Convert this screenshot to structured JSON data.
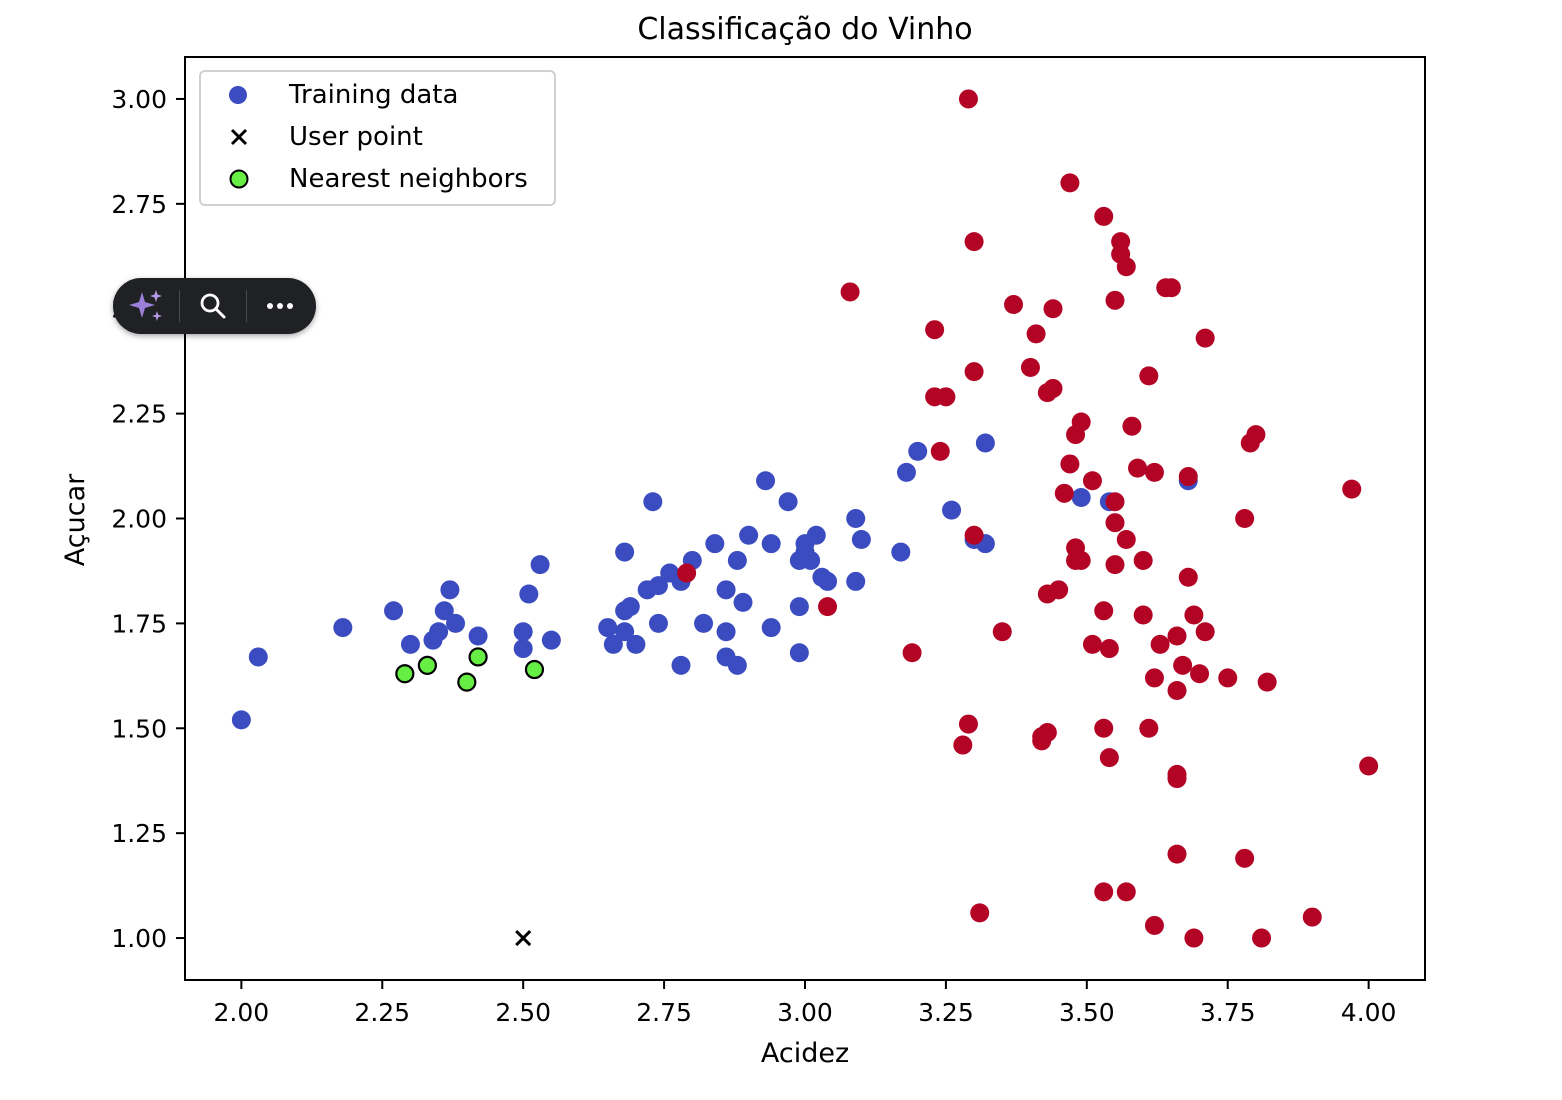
{
  "colors": {
    "training": "#3B4CC0",
    "other": "#B40426",
    "neighbor_fill": "#66EE44",
    "user_point": "#000000"
  },
  "chart_data": {
    "type": "scatter",
    "title": "Classificação do Vinho",
    "xlabel": "Acidez",
    "ylabel": "Açucar",
    "xlim": [
      1.9,
      4.1
    ],
    "ylim": [
      0.9,
      3.1
    ],
    "xticks": [
      "2.00",
      "2.25",
      "2.50",
      "2.75",
      "3.00",
      "3.25",
      "3.50",
      "3.75",
      "4.00"
    ],
    "yticks": [
      "1.00",
      "1.25",
      "1.50",
      "1.75",
      "2.00",
      "2.25",
      "2.50",
      "2.75",
      "3.00"
    ],
    "grid": false,
    "legend_position": "top-left",
    "legend": [
      {
        "label": "Training data",
        "marker": "circle-blue"
      },
      {
        "label": "User point",
        "marker": "x-black"
      },
      {
        "label": "Nearest neighbors",
        "marker": "circle-green"
      }
    ],
    "series": [
      {
        "name": "Training data",
        "class_a": [
          [
            2.0,
            1.52
          ],
          [
            2.03,
            1.67
          ],
          [
            2.18,
            1.74
          ],
          [
            2.27,
            1.78
          ],
          [
            2.3,
            1.7
          ],
          [
            2.34,
            1.71
          ],
          [
            2.35,
            1.73
          ],
          [
            2.36,
            1.78
          ],
          [
            2.37,
            1.83
          ],
          [
            2.38,
            1.75
          ],
          [
            2.42,
            1.72
          ],
          [
            2.5,
            1.69
          ],
          [
            2.5,
            1.73
          ],
          [
            2.51,
            1.82
          ],
          [
            2.53,
            1.89
          ],
          [
            2.55,
            1.71
          ],
          [
            2.65,
            1.74
          ],
          [
            2.66,
            1.7
          ],
          [
            2.68,
            1.73
          ],
          [
            2.68,
            1.78
          ],
          [
            2.68,
            1.92
          ],
          [
            2.69,
            1.79
          ],
          [
            2.7,
            1.7
          ],
          [
            2.72,
            1.83
          ],
          [
            2.73,
            2.04
          ],
          [
            2.74,
            1.84
          ],
          [
            2.74,
            1.75
          ],
          [
            2.76,
            1.87
          ],
          [
            2.78,
            1.85
          ],
          [
            2.78,
            1.65
          ],
          [
            2.8,
            1.9
          ],
          [
            2.82,
            1.75
          ],
          [
            2.84,
            1.94
          ],
          [
            2.86,
            1.83
          ],
          [
            2.86,
            1.73
          ],
          [
            2.86,
            1.67
          ],
          [
            2.88,
            1.65
          ],
          [
            2.88,
            1.9
          ],
          [
            2.89,
            1.8
          ],
          [
            2.9,
            1.96
          ],
          [
            2.93,
            2.09
          ],
          [
            2.94,
            1.94
          ],
          [
            2.94,
            1.74
          ],
          [
            2.97,
            2.04
          ],
          [
            2.99,
            1.9
          ],
          [
            2.99,
            1.79
          ],
          [
            2.99,
            1.68
          ],
          [
            3.0,
            1.92
          ],
          [
            3.0,
            1.94
          ],
          [
            3.01,
            1.9
          ],
          [
            3.02,
            1.96
          ],
          [
            3.03,
            1.86
          ],
          [
            3.04,
            1.85
          ],
          [
            3.09,
            2.0
          ],
          [
            3.09,
            1.85
          ],
          [
            3.1,
            1.95
          ],
          [
            3.17,
            1.92
          ],
          [
            3.18,
            2.11
          ],
          [
            3.2,
            2.16
          ],
          [
            3.26,
            2.02
          ],
          [
            3.3,
            1.95
          ],
          [
            3.32,
            1.94
          ],
          [
            3.32,
            2.18
          ],
          [
            3.49,
            2.05
          ],
          [
            3.54,
            2.04
          ],
          [
            3.68,
            2.09
          ]
        ],
        "class_b": [
          [
            2.79,
            1.87
          ],
          [
            3.04,
            1.79
          ],
          [
            3.08,
            2.54
          ],
          [
            3.19,
            1.68
          ],
          [
            3.23,
            2.45
          ],
          [
            3.23,
            2.29
          ],
          [
            3.25,
            2.29
          ],
          [
            3.24,
            2.16
          ],
          [
            3.28,
            1.46
          ],
          [
            3.29,
            1.51
          ],
          [
            3.29,
            3.0
          ],
          [
            3.3,
            1.96
          ],
          [
            3.3,
            2.35
          ],
          [
            3.3,
            2.66
          ],
          [
            3.31,
            1.06
          ],
          [
            3.35,
            1.73
          ],
          [
            3.37,
            2.51
          ],
          [
            3.4,
            2.36
          ],
          [
            3.41,
            2.44
          ],
          [
            3.42,
            1.47
          ],
          [
            3.42,
            1.48
          ],
          [
            3.43,
            1.49
          ],
          [
            3.43,
            1.82
          ],
          [
            3.43,
            2.3
          ],
          [
            3.44,
            2.31
          ],
          [
            3.44,
            2.5
          ],
          [
            3.45,
            1.83
          ],
          [
            3.46,
            2.06
          ],
          [
            3.47,
            2.8
          ],
          [
            3.47,
            2.13
          ],
          [
            3.48,
            2.2
          ],
          [
            3.48,
            1.93
          ],
          [
            3.48,
            1.9
          ],
          [
            3.49,
            1.9
          ],
          [
            3.49,
            2.23
          ],
          [
            3.51,
            2.09
          ],
          [
            3.51,
            1.7
          ],
          [
            3.53,
            2.72
          ],
          [
            3.53,
            1.78
          ],
          [
            3.53,
            1.5
          ],
          [
            3.53,
            1.11
          ],
          [
            3.54,
            1.69
          ],
          [
            3.54,
            1.43
          ],
          [
            3.55,
            2.04
          ],
          [
            3.55,
            1.99
          ],
          [
            3.55,
            1.89
          ],
          [
            3.55,
            2.52
          ],
          [
            3.56,
            2.66
          ],
          [
            3.56,
            2.63
          ],
          [
            3.57,
            2.6
          ],
          [
            3.57,
            1.95
          ],
          [
            3.57,
            1.11
          ],
          [
            3.58,
            2.22
          ],
          [
            3.59,
            2.12
          ],
          [
            3.6,
            1.77
          ],
          [
            3.6,
            1.9
          ],
          [
            3.61,
            1.5
          ],
          [
            3.61,
            2.34
          ],
          [
            3.62,
            2.11
          ],
          [
            3.62,
            1.62
          ],
          [
            3.62,
            1.03
          ],
          [
            3.63,
            1.7
          ],
          [
            3.64,
            2.55
          ],
          [
            3.65,
            2.55
          ],
          [
            3.66,
            1.72
          ],
          [
            3.66,
            1.59
          ],
          [
            3.66,
            1.39
          ],
          [
            3.66,
            1.38
          ],
          [
            3.66,
            1.2
          ],
          [
            3.67,
            1.65
          ],
          [
            3.68,
            1.86
          ],
          [
            3.68,
            2.1
          ],
          [
            3.69,
            1.77
          ],
          [
            3.69,
            1.0
          ],
          [
            3.7,
            1.63
          ],
          [
            3.71,
            2.43
          ],
          [
            3.71,
            1.73
          ],
          [
            3.75,
            1.62
          ],
          [
            3.78,
            2.0
          ],
          [
            3.78,
            1.19
          ],
          [
            3.79,
            2.18
          ],
          [
            3.8,
            2.2
          ],
          [
            3.81,
            1.0
          ],
          [
            3.82,
            1.61
          ],
          [
            3.9,
            1.05
          ],
          [
            3.97,
            2.07
          ],
          [
            4.0,
            1.41
          ]
        ]
      },
      {
        "name": "User point",
        "points": [
          [
            2.5,
            1.0
          ]
        ]
      },
      {
        "name": "Nearest neighbors",
        "points": [
          [
            2.29,
            1.63
          ],
          [
            2.33,
            1.65
          ],
          [
            2.4,
            1.61
          ],
          [
            2.42,
            1.67
          ],
          [
            2.52,
            1.64
          ]
        ]
      }
    ]
  },
  "toolbar": {
    "items": [
      {
        "name": "sparkle-ai-icon"
      },
      {
        "name": "search-icon"
      },
      {
        "name": "more-options-icon"
      }
    ]
  }
}
